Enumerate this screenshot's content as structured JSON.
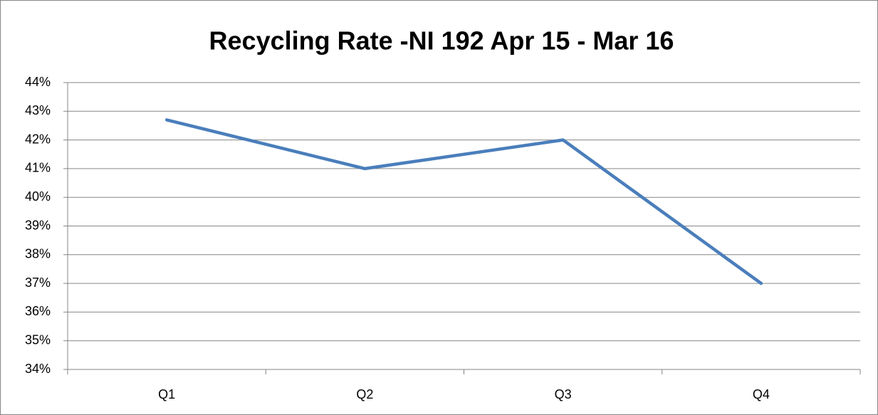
{
  "chart_data": {
    "type": "line",
    "title": "Recycling Rate -NI 192 Apr 15 - Mar 16",
    "categories": [
      "Q1",
      "Q2",
      "Q3",
      "Q4"
    ],
    "values": [
      42.7,
      41,
      42,
      37
    ],
    "color": "#4a7ebb",
    "ylim": [
      34,
      44
    ],
    "yticks": [
      {
        "value": 34,
        "label": "34%"
      },
      {
        "value": 35,
        "label": "35%"
      },
      {
        "value": 36,
        "label": "36%"
      },
      {
        "value": 37,
        "label": "37%"
      },
      {
        "value": 38,
        "label": "38%"
      },
      {
        "value": 39,
        "label": "39%"
      },
      {
        "value": 40,
        "label": "40%"
      },
      {
        "value": 41,
        "label": "41%"
      },
      {
        "value": 42,
        "label": "42%"
      },
      {
        "value": 43,
        "label": "43%"
      },
      {
        "value": 44,
        "label": "44%"
      }
    ],
    "grid": true
  }
}
